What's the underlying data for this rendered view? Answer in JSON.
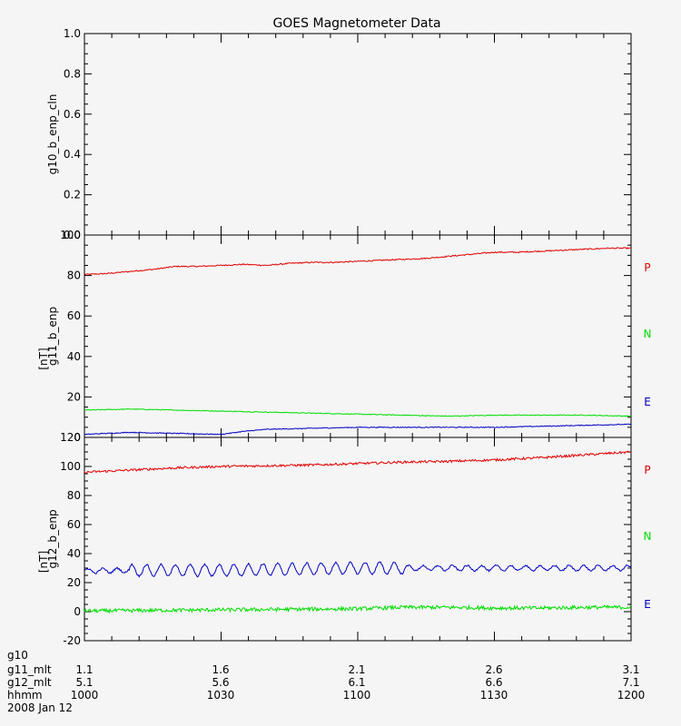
{
  "chart_data": {
    "type": "line",
    "title": "GOES Magnetometer Data",
    "background": "#f5f5f5",
    "colors": {
      "P": "#e00000",
      "N": "#00dd00",
      "E": "#0000c0"
    },
    "x_range_minutes": [
      0,
      120
    ],
    "panels": [
      {
        "ylabel": "g10_b_enp_cln",
        "unit": "",
        "ylim": [
          0,
          1
        ],
        "yticks": [
          "0.0",
          "0.2",
          "0.4",
          "0.6",
          "0.8",
          "1.0"
        ],
        "ytick_values": [
          0,
          0.2,
          0.4,
          0.6,
          0.8,
          1.0
        ],
        "series": []
      },
      {
        "ylabel": "g11_b_enp",
        "unit": "[nT]",
        "ylim": [
          0,
          100
        ],
        "yticks": [
          "0",
          "20",
          "40",
          "60",
          "80",
          "100"
        ],
        "ytick_values": [
          0,
          20,
          40,
          60,
          80,
          100
        ],
        "series": [
          {
            "name": "P",
            "x": [
              0,
              5,
              10,
              15,
              20,
              25,
              30,
              35,
              40,
              45,
              50,
              55,
              60,
              65,
              70,
              75,
              80,
              85,
              90,
              95,
              100,
              105,
              110,
              115,
              120
            ],
            "y": [
              80.5,
              81,
              82,
              83,
              84.5,
              84.5,
              85,
              85.5,
              85,
              86,
              86.5,
              86.5,
              87,
              87.5,
              88,
              88.5,
              89.5,
              90.5,
              91.5,
              91.5,
              92,
              92.5,
              93,
              93.5,
              93.5
            ],
            "noise": 0.3,
            "osc_amp": 0,
            "osc_period": 4
          },
          {
            "name": "N",
            "x": [
              0,
              10,
              20,
              30,
              40,
              50,
              60,
              70,
              80,
              90,
              100,
              110,
              120
            ],
            "y": [
              13.5,
              14,
              13.5,
              13,
              12.5,
              12,
              11.5,
              11,
              10.5,
              11,
              11,
              11,
              10.5
            ],
            "noise": 0.2,
            "osc_amp": 0,
            "osc_period": 4
          },
          {
            "name": "E",
            "x": [
              0,
              10,
              20,
              30,
              35,
              40,
              50,
              60,
              70,
              80,
              90,
              100,
              110,
              120
            ],
            "y": [
              1.5,
              2.5,
              2,
              1.5,
              3,
              4,
              4.5,
              5,
              5,
              5,
              5,
              5.5,
              6,
              6.5
            ],
            "noise": 0.2,
            "osc_amp": 0,
            "osc_period": 4
          }
        ]
      },
      {
        "ylabel": "g12_b_enp",
        "unit": "[nT]",
        "ylim": [
          -20,
          120
        ],
        "yticks": [
          "-20",
          "0",
          "20",
          "40",
          "60",
          "80",
          "100",
          "120"
        ],
        "ytick_values": [
          -20,
          0,
          20,
          40,
          60,
          80,
          100,
          120
        ],
        "series": [
          {
            "name": "P",
            "x": [
              0,
              10,
              20,
              30,
              40,
              50,
              60,
              70,
              80,
              90,
              100,
              110,
              120
            ],
            "y": [
              96,
              97.5,
              99,
              100,
              100.5,
              101,
              102,
              103,
              103.5,
              104.5,
              106,
              108,
              110
            ],
            "noise": 0.8,
            "osc_amp": 0,
            "osc_period": 4
          },
          {
            "name": "N",
            "x": [
              0,
              20,
              40,
              60,
              70,
              80,
              90,
              100,
              110,
              120
            ],
            "y": [
              0.5,
              1,
              1.5,
              2,
              3,
              3,
              2.5,
              2.5,
              3,
              3
            ],
            "noise": 1.3,
            "osc_amp": 0,
            "osc_period": 4
          },
          {
            "name": "E",
            "x": [
              0,
              10,
              20,
              30,
              40,
              50,
              60,
              70,
              80,
              90,
              100,
              110,
              120
            ],
            "y": [
              28,
              28.5,
              28.5,
              28.5,
              29,
              29.5,
              30,
              30,
              30,
              30,
              30,
              30,
              30
            ],
            "noise": 0.6,
            "osc_amp": 4,
            "osc_period": 3.2
          }
        ]
      }
    ],
    "x_rows": [
      {
        "label": "g10",
        "values": [
          "",
          "",
          "",
          "",
          ""
        ]
      },
      {
        "label": "g11_mlt",
        "values": [
          "1.1",
          "1.6",
          "2.1",
          "2.6",
          "3.1"
        ]
      },
      {
        "label": "g12_mlt",
        "values": [
          "5.1",
          "5.6",
          "6.1",
          "6.6",
          "7.1"
        ]
      },
      {
        "label": "hhmm",
        "values": [
          "1000",
          "1030",
          "1100",
          "1130",
          "1200"
        ]
      }
    ],
    "date": "2008 Jan 12"
  }
}
